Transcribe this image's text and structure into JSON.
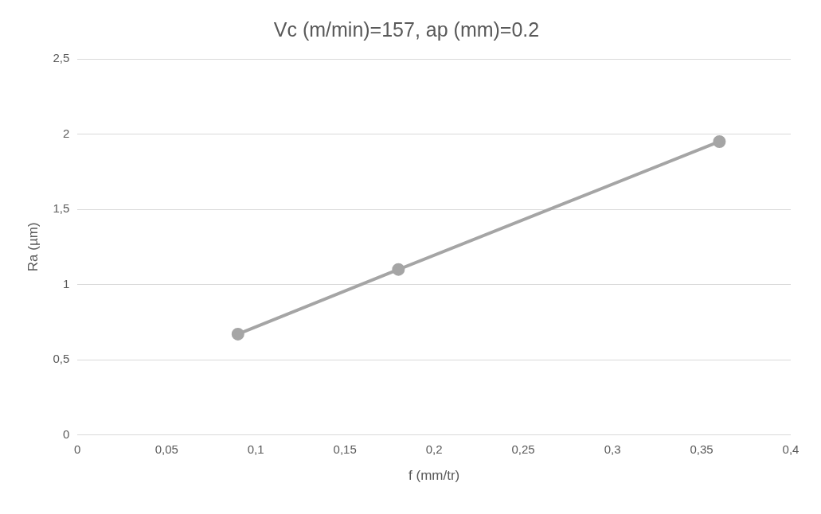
{
  "chart_data": {
    "type": "line",
    "title": "Vc (m/min)=157, ap (mm)=0.2",
    "xlabel": "f (mm/tr)",
    "ylabel": "Ra (µm)",
    "series": [
      {
        "color": "#a5a5a5",
        "x": [
          0.09,
          0.18,
          0.36
        ],
        "values": [
          0.67,
          1.1,
          1.95
        ]
      }
    ],
    "xlim": [
      0,
      0.4
    ],
    "ylim": [
      0,
      2.5
    ],
    "xticks": [
      0,
      {
        "value": 0.05,
        "label": "0,05"
      },
      {
        "value": 0.1,
        "label": "0,1"
      },
      {
        "value": 0.15,
        "label": "0,15"
      },
      {
        "value": 0.2,
        "label": "0,2"
      },
      {
        "value": 0.25,
        "label": "0,25"
      },
      {
        "value": 0.3,
        "label": "0,3"
      },
      {
        "value": 0.35,
        "label": "0,35"
      },
      {
        "value": 0.4,
        "label": "0,4"
      }
    ],
    "yticks": [
      0,
      {
        "value": 0.5,
        "label": "0,5"
      },
      1,
      {
        "value": 1.5,
        "label": "1,5"
      },
      2,
      {
        "value": 2.5,
        "label": "2,5"
      }
    ],
    "grid": "y",
    "legend": false,
    "marker": "circle",
    "line_style": "solid"
  }
}
